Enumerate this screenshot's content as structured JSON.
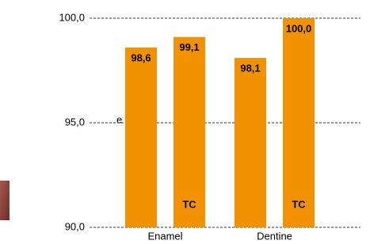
{
  "chart_data": {
    "type": "bar",
    "side_text": "e",
    "categories": [
      "Enamel",
      "Dentine"
    ],
    "series": [
      {
        "color": "#f39200",
        "values": [
          98.6,
          98.1
        ],
        "value_labels": [
          "98,6",
          "98,1"
        ]
      },
      {
        "color": "#f39200",
        "values": [
          99.1,
          100.0
        ],
        "value_labels": [
          "99,1",
          "100,0"
        ],
        "annotation": "TC"
      }
    ],
    "ylim": [
      90,
      100
    ],
    "yticks": [
      {
        "value": 90,
        "label": "90,0"
      },
      {
        "value": 95,
        "label": "95,0"
      },
      {
        "value": 100,
        "label": "100,0"
      }
    ],
    "grid": true
  }
}
